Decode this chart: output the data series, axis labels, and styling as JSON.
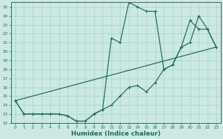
{
  "xlabel": "Humidex (Indice chaleur)",
  "xlim": [
    -0.5,
    23.5
  ],
  "ylim": [
    12,
    25.5
  ],
  "background_color": "#cce8e4",
  "grid_color": "#a8d4ce",
  "line_color": "#1a6b5a",
  "xticks": [
    0,
    1,
    2,
    3,
    4,
    5,
    6,
    7,
    8,
    9,
    10,
    11,
    12,
    13,
    14,
    15,
    16,
    17,
    18,
    19,
    20,
    21,
    22,
    23
  ],
  "yticks": [
    12,
    13,
    14,
    15,
    16,
    17,
    18,
    19,
    20,
    21,
    22,
    23,
    24,
    25
  ],
  "line1_x": [
    0,
    1,
    2,
    3,
    4,
    5,
    6,
    7,
    8,
    9,
    10,
    11,
    12,
    13,
    14,
    15,
    16,
    17,
    18,
    19,
    20,
    21,
    22,
    23
  ],
  "line1_y": [
    14.5,
    13.0,
    13.0,
    13.0,
    13.0,
    13.0,
    12.8,
    12.2,
    12.2,
    13.0,
    13.5,
    14.0,
    15.0,
    16.0,
    16.2,
    15.5,
    16.5,
    18.0,
    18.5,
    20.5,
    23.5,
    22.5,
    22.5,
    20.5
  ],
  "line2_x": [
    0,
    1,
    2,
    3,
    4,
    5,
    6,
    7,
    8,
    9,
    10,
    11,
    12,
    13,
    14,
    15,
    16,
    17,
    18,
    19,
    20,
    21,
    22,
    23
  ],
  "line2_y": [
    14.5,
    13.0,
    13.0,
    13.0,
    13.0,
    13.0,
    12.8,
    12.2,
    12.2,
    13.0,
    13.5,
    21.5,
    21.0,
    25.5,
    25.0,
    24.5,
    24.5,
    18.0,
    18.5,
    20.5,
    21.0,
    24.0,
    22.5,
    20.5
  ],
  "line3_x": [
    0,
    23
  ],
  "line3_y": [
    14.5,
    20.5
  ]
}
